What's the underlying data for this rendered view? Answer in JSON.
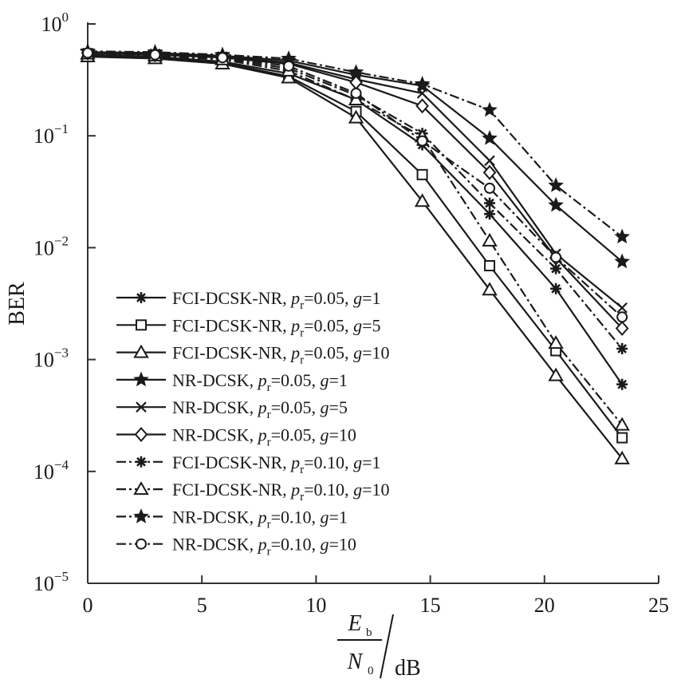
{
  "chart_data": {
    "type": "line",
    "xlabel": {
      "numerator": "E",
      "numerator_sub": "b",
      "denominator": "N",
      "denominator_sub": "0",
      "unit": "/dB"
    },
    "ylabel": "BER",
    "xlim": [
      0,
      25
    ],
    "ylim": [
      1e-05,
      1
    ],
    "yscale": "log",
    "grid": false,
    "legend_position": "lower-left",
    "x_ticks": [
      {
        "value": 0,
        "label": "0"
      },
      {
        "value": 5,
        "label": "5"
      },
      {
        "value": 10,
        "label": "10"
      },
      {
        "value": 15,
        "label": "15"
      },
      {
        "value": 20,
        "label": "20"
      },
      {
        "value": 25,
        "label": "25"
      }
    ],
    "y_ticks": [
      {
        "value": 1,
        "base": "10",
        "exp": "0"
      },
      {
        "value": 0.1,
        "base": "10",
        "exp": "−1"
      },
      {
        "value": 0.01,
        "base": "10",
        "exp": "−2"
      },
      {
        "value": 0.001,
        "base": "10",
        "exp": "−3"
      },
      {
        "value": 0.0001,
        "base": "10",
        "exp": "−4"
      },
      {
        "value": 1e-05,
        "base": "10",
        "exp": "−5"
      }
    ],
    "x": [
      0,
      2.95,
      5.9,
      8.8,
      11.75,
      14.65,
      17.6,
      20.5,
      23.4
    ],
    "series": [
      {
        "scheme": "FCI-DCSK-NR",
        "pr": "0.05",
        "g": "1",
        "dashed": false,
        "marker": "asterisk",
        "values": [
          0.53,
          0.51,
          0.46,
          0.36,
          0.21,
          0.083,
          0.02,
          0.0043,
          0.0006
        ]
      },
      {
        "scheme": "FCI-DCSK-NR",
        "pr": "0.05",
        "g": "5",
        "dashed": false,
        "marker": "square",
        "values": [
          0.52,
          0.5,
          0.45,
          0.34,
          0.165,
          0.045,
          0.0069,
          0.0012,
          0.0002
        ]
      },
      {
        "scheme": "FCI-DCSK-NR",
        "pr": "0.05",
        "g": "10",
        "dashed": false,
        "marker": "triangle",
        "values": [
          0.51,
          0.49,
          0.44,
          0.33,
          0.145,
          0.026,
          0.0042,
          0.00072,
          0.00013
        ]
      },
      {
        "scheme": "NR-DCSK",
        "pr": "0.05",
        "g": "1",
        "dashed": false,
        "marker": "star",
        "values": [
          0.56,
          0.55,
          0.52,
          0.47,
          0.35,
          0.28,
          0.095,
          0.024,
          0.0075
        ]
      },
      {
        "scheme": "NR-DCSK",
        "pr": "0.05",
        "g": "5",
        "dashed": false,
        "marker": "x",
        "values": [
          0.55,
          0.54,
          0.51,
          0.45,
          0.32,
          0.24,
          0.06,
          0.0088,
          0.0029
        ]
      },
      {
        "scheme": "NR-DCSK",
        "pr": "0.05",
        "g": "10",
        "dashed": false,
        "marker": "diamond",
        "values": [
          0.55,
          0.53,
          0.5,
          0.44,
          0.3,
          0.185,
          0.047,
          0.0081,
          0.0019
        ]
      },
      {
        "scheme": "FCI-DCSK-NR",
        "pr": "0.10",
        "g": "1",
        "dashed": true,
        "marker": "asterisk",
        "values": [
          0.55,
          0.53,
          0.49,
          0.4,
          0.23,
          0.105,
          0.025,
          0.0065,
          0.00125
        ]
      },
      {
        "scheme": "FCI-DCSK-NR",
        "pr": "0.10",
        "g": "10",
        "dashed": true,
        "marker": "triangle",
        "values": [
          0.54,
          0.52,
          0.48,
          0.38,
          0.21,
          0.098,
          0.0115,
          0.0014,
          0.00026
        ]
      },
      {
        "scheme": "NR-DCSK",
        "pr": "0.10",
        "g": "1",
        "dashed": true,
        "marker": "star",
        "values": [
          0.57,
          0.56,
          0.53,
          0.49,
          0.37,
          0.29,
          0.17,
          0.036,
          0.0125
        ]
      },
      {
        "scheme": "NR-DCSK",
        "pr": "0.10",
        "g": "10",
        "dashed": true,
        "marker": "circle",
        "values": [
          0.55,
          0.53,
          0.5,
          0.42,
          0.24,
          0.09,
          0.034,
          0.0082,
          0.0024
        ]
      }
    ],
    "legend_labels": {
      "pr_symbol": "p",
      "pr_sub": "r",
      "g_symbol": "g",
      "equals": "=",
      "separator": ","
    }
  }
}
